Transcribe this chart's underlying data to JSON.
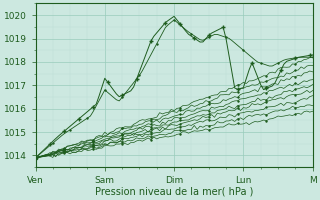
{
  "xlabel": "Pression niveau de la mer( hPa )",
  "ylim": [
    1013.5,
    1020.5
  ],
  "xlim": [
    0,
    100
  ],
  "day_ticks": [
    0,
    25,
    50,
    75,
    100
  ],
  "day_labels": [
    "Ven",
    "Sam",
    "Dim",
    "Lun",
    "M"
  ],
  "bg_color": "#cce8e0",
  "grid_color_major": "#99ccbb",
  "grid_color_minor": "#bbddd5",
  "line_color": "#1e5c1e",
  "yticks": [
    1014,
    1015,
    1016,
    1017,
    1018,
    1019,
    1020
  ],
  "figsize": [
    3.2,
    2.0
  ],
  "dpi": 100
}
